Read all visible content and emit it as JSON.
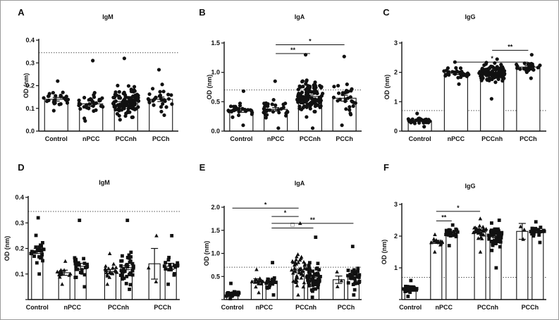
{
  "colors": {
    "axis": "#111111",
    "bar_fill": "#ffffff",
    "points": "#111111",
    "reference_line": "#555555"
  },
  "chart_data": [
    {
      "id": "A",
      "type": "bar",
      "label": "A",
      "title": "IgM",
      "ylabel": "OD (nm)",
      "ylim": [
        0.0,
        0.4
      ],
      "yticks": [
        "0.0",
        "0.1",
        "0.2",
        "0.3",
        "0.4"
      ],
      "reference_line": 0.345,
      "categories": [
        "Control",
        "nPCC",
        "PCCnh",
        "PCCh"
      ],
      "groups": [
        {
          "category": "Control",
          "mean": 0.14,
          "sem": 0.008,
          "n": 28,
          "min": 0.09,
          "max": 0.22,
          "marker": "circle"
        },
        {
          "category": "nPCC",
          "mean": 0.12,
          "sem": 0.012,
          "n": 32,
          "min": 0.045,
          "max": 0.31,
          "marker": "circle"
        },
        {
          "category": "PCCnh",
          "mean": 0.13,
          "sem": 0.006,
          "n": 110,
          "min": 0.05,
          "max": 0.32,
          "marker": "circle"
        },
        {
          "category": "PCCh",
          "mean": 0.14,
          "sem": 0.01,
          "n": 28,
          "min": 0.07,
          "max": 0.27,
          "marker": "circle"
        }
      ],
      "significance": []
    },
    {
      "id": "B",
      "type": "bar",
      "label": "B",
      "title": "IgA",
      "ylabel": "OD (nm)",
      "ylim": [
        0.0,
        1.5
      ],
      "yticks": [
        "0.0",
        "0.5",
        "1.0",
        "1.5"
      ],
      "reference_line": 0.7,
      "categories": [
        "Control",
        "nPCC",
        "PCCnh",
        "PCCh"
      ],
      "groups": [
        {
          "category": "Control",
          "mean": 0.35,
          "sem": 0.03,
          "n": 28,
          "min": 0.1,
          "max": 0.68,
          "marker": "circle"
        },
        {
          "category": "nPCC",
          "mean": 0.37,
          "sem": 0.03,
          "n": 32,
          "min": 0.05,
          "max": 0.85,
          "marker": "circle"
        },
        {
          "category": "PCCnh",
          "mean": 0.59,
          "sem": 0.025,
          "n": 110,
          "min": 0.05,
          "max": 1.3,
          "marker": "circle"
        },
        {
          "category": "PCCh",
          "mean": 0.56,
          "sem": 0.05,
          "n": 32,
          "min": 0.1,
          "max": 1.27,
          "marker": "circle"
        }
      ],
      "significance": [
        {
          "from": 1,
          "to": 3,
          "y": 1.47,
          "label": "*"
        },
        {
          "from": 1,
          "to": 2,
          "y": 1.32,
          "label": "**"
        }
      ]
    },
    {
      "id": "C",
      "type": "bar",
      "label": "C",
      "title": "IgG",
      "ylabel": "OD (nm)",
      "ylim": [
        0,
        3
      ],
      "yticks": [
        "0",
        "1",
        "2",
        "3"
      ],
      "reference_line": 0.7,
      "categories": [
        "Control",
        "nPCC",
        "PCCnh",
        "PCCh"
      ],
      "groups": [
        {
          "category": "Control",
          "mean": 0.35,
          "sem": 0.02,
          "n": 28,
          "min": 0.15,
          "max": 0.6,
          "marker": "circle"
        },
        {
          "category": "nPCC",
          "mean": 1.97,
          "sem": 0.04,
          "n": 30,
          "min": 1.6,
          "max": 2.35,
          "marker": "circle"
        },
        {
          "category": "PCCnh",
          "mean": 1.95,
          "sem": 0.03,
          "n": 110,
          "min": 1.1,
          "max": 2.45,
          "marker": "circle"
        },
        {
          "category": "PCCh",
          "mean": 2.18,
          "sem": 0.05,
          "n": 28,
          "min": 1.8,
          "max": 2.6,
          "marker": "circle"
        }
      ],
      "significance": [
        {
          "from": 2,
          "to": 3,
          "y": 2.75,
          "label": "**"
        },
        {
          "from": 1,
          "to": 3,
          "y": 2.35,
          "label": "*"
        }
      ]
    },
    {
      "id": "D",
      "type": "bar",
      "label": "D",
      "title": "IgM",
      "ylabel": "OD (nm)",
      "ylim": [
        0.0,
        0.4
      ],
      "yticks": [
        "",
        "0.1",
        "0.2",
        "0.3",
        "0.4"
      ],
      "reference_line": 0.345,
      "categories": [
        "Control",
        "nPCC",
        "PCCnh",
        "PCCh"
      ],
      "groups": [
        {
          "category": "Control",
          "mean": 0.19,
          "sem": 0.01,
          "n": 28,
          "min": 0.1,
          "max": 0.32,
          "marker": "square"
        },
        {
          "category": "",
          "mean": 0.105,
          "sem": 0.01,
          "n": 16,
          "min": 0.06,
          "max": 0.15,
          "marker": "triangle"
        },
        {
          "category": "nPCC",
          "mean": 0.13,
          "sem": 0.012,
          "n": 24,
          "min": 0.05,
          "max": 0.31,
          "marker": "square"
        },
        {
          "category": "",
          "mean": 0.11,
          "sem": 0.008,
          "n": 22,
          "min": 0.06,
          "max": 0.18,
          "marker": "triangle"
        },
        {
          "category": "PCCnh",
          "mean": 0.125,
          "sem": 0.008,
          "n": 40,
          "min": 0.04,
          "max": 0.31,
          "marker": "square"
        },
        {
          "category": "",
          "mean": 0.14,
          "sem": 0.06,
          "n": 3,
          "min": 0.07,
          "max": 0.25,
          "marker": "triangle"
        },
        {
          "category": "PCCh",
          "mean": 0.13,
          "sem": 0.012,
          "n": 20,
          "min": 0.06,
          "max": 0.25,
          "marker": "square"
        }
      ],
      "significance": []
    },
    {
      "id": "E",
      "type": "bar",
      "label": "E",
      "title": "IgA",
      "ylabel": "OD (nm)",
      "ylim": [
        0.0,
        2.0
      ],
      "yticks": [
        "",
        "0.5",
        "1.0",
        "1.5",
        "2.0"
      ],
      "reference_line": 0.7,
      "categories": [
        "Control",
        "nPCC",
        "PCCnh",
        "PCCh"
      ],
      "groups": [
        {
          "category": "Control",
          "mean": 0.12,
          "sem": 0.01,
          "n": 28,
          "min": 0.02,
          "max": 0.35,
          "marker": "square"
        },
        {
          "category": "",
          "mean": 0.4,
          "sem": 0.05,
          "n": 14,
          "min": 0.15,
          "max": 0.65,
          "marker": "triangle"
        },
        {
          "category": "nPCC",
          "mean": 0.4,
          "sem": 0.04,
          "n": 22,
          "min": 0.1,
          "max": 0.8,
          "marker": "square"
        },
        {
          "category": "",
          "mean": 0.62,
          "sem": 0.04,
          "n": 45,
          "min": 0.1,
          "max": 1.65,
          "marker": "triangle"
        },
        {
          "category": "PCCnh",
          "mean": 0.5,
          "sem": 0.03,
          "n": 60,
          "min": 0.05,
          "max": 1.35,
          "marker": "square"
        },
        {
          "category": "",
          "mean": 0.43,
          "sem": 0.08,
          "n": 3,
          "min": 0.28,
          "max": 0.6,
          "marker": "triangle"
        },
        {
          "category": "PCCh",
          "mean": 0.5,
          "sem": 0.04,
          "n": 30,
          "min": 0.1,
          "max": 1.15,
          "marker": "square"
        }
      ],
      "significance": [
        {
          "from": 0,
          "to": 3,
          "y": 1.98,
          "label": "*"
        },
        {
          "from": 2,
          "to": 3,
          "y": 1.8,
          "label": "*"
        },
        {
          "from": 2,
          "to": 4,
          "y": 1.55,
          "label": "□"
        },
        {
          "from": 2,
          "to": 6,
          "y": 1.65,
          "label": "**"
        }
      ]
    },
    {
      "id": "F",
      "type": "bar",
      "label": "F",
      "title": "IgG",
      "ylabel": "OD (nm)",
      "ylim": [
        0,
        3
      ],
      "yticks": [
        "",
        "1",
        "2",
        "3"
      ],
      "reference_line": 0.7,
      "categories": [
        "Control",
        "nPCC",
        "PCCnh",
        "PCCh"
      ],
      "groups": [
        {
          "category": "Control",
          "mean": 0.33,
          "sem": 0.02,
          "n": 28,
          "min": 0.1,
          "max": 0.6,
          "marker": "square"
        },
        {
          "category": "",
          "mean": 1.82,
          "sem": 0.05,
          "n": 14,
          "min": 1.5,
          "max": 2.05,
          "marker": "triangle"
        },
        {
          "category": "nPCC",
          "mean": 2.1,
          "sem": 0.04,
          "n": 24,
          "min": 1.7,
          "max": 2.35,
          "marker": "square"
        },
        {
          "category": "",
          "mean": 2.12,
          "sem": 0.06,
          "n": 28,
          "min": 1.5,
          "max": 2.55,
          "marker": "triangle"
        },
        {
          "category": "PCCnh",
          "mean": 1.98,
          "sem": 0.03,
          "n": 60,
          "min": 1.0,
          "max": 2.5,
          "marker": "square"
        },
        {
          "category": "",
          "mean": 2.15,
          "sem": 0.25,
          "n": 3,
          "min": 1.9,
          "max": 2.3,
          "marker": "triangle"
        },
        {
          "category": "PCCh",
          "mean": 2.15,
          "sem": 0.04,
          "n": 24,
          "min": 1.8,
          "max": 2.45,
          "marker": "square"
        }
      ],
      "significance": [
        {
          "from": 1,
          "to": 3,
          "y": 2.78,
          "label": "*"
        },
        {
          "from": 1,
          "to": 2,
          "y": 2.48,
          "label": "**"
        }
      ]
    }
  ]
}
